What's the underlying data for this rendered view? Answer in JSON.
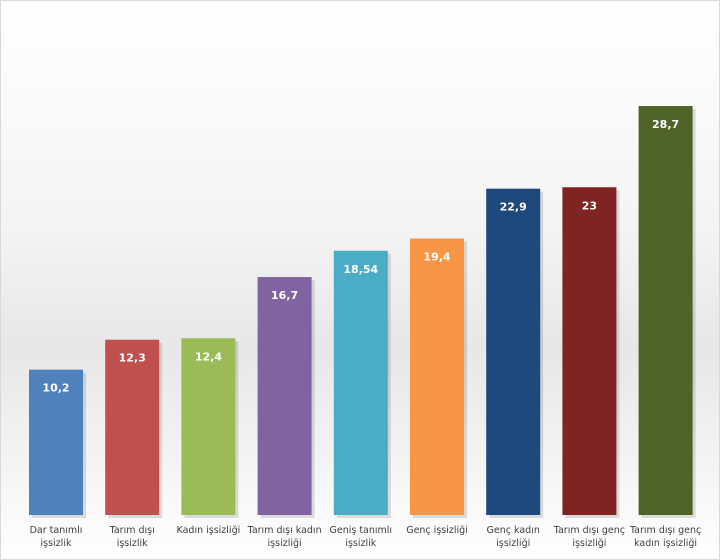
{
  "chart_data": {
    "type": "bar",
    "categories": [
      [
        "Dar tanımlı",
        "işsizlik"
      ],
      [
        "Tarım dışı",
        "işsizlik"
      ],
      [
        "Kadın işsizliği"
      ],
      [
        "Tarım dışı kadın",
        "işsizliği"
      ],
      [
        "Geniş tanımlı",
        "işsizlik"
      ],
      [
        "Genç işsizliği"
      ],
      [
        "Genç kadın",
        "işsizliği"
      ],
      [
        "Tarım dışı genç",
        "işsizliği"
      ],
      [
        "Tarım dışı genç",
        "kadın işsizliği"
      ]
    ],
    "values": [
      10.2,
      12.3,
      12.4,
      16.7,
      18.54,
      19.4,
      22.9,
      23,
      28.7
    ],
    "value_labels": [
      "10,2",
      "12,3",
      "12,4",
      "16,7",
      "18,54",
      "19,4",
      "22,9",
      "23",
      "28,7"
    ],
    "colors": [
      "#4f81bd",
      "#c0504d",
      "#9bbb59",
      "#8064a2",
      "#4bacc6",
      "#f79646",
      "#1f497d",
      "#7f2422",
      "#4f6228"
    ],
    "title": "",
    "xlabel": "",
    "ylabel": "",
    "ylim": [
      0,
      30
    ],
    "grid": false,
    "legend": "none"
  }
}
